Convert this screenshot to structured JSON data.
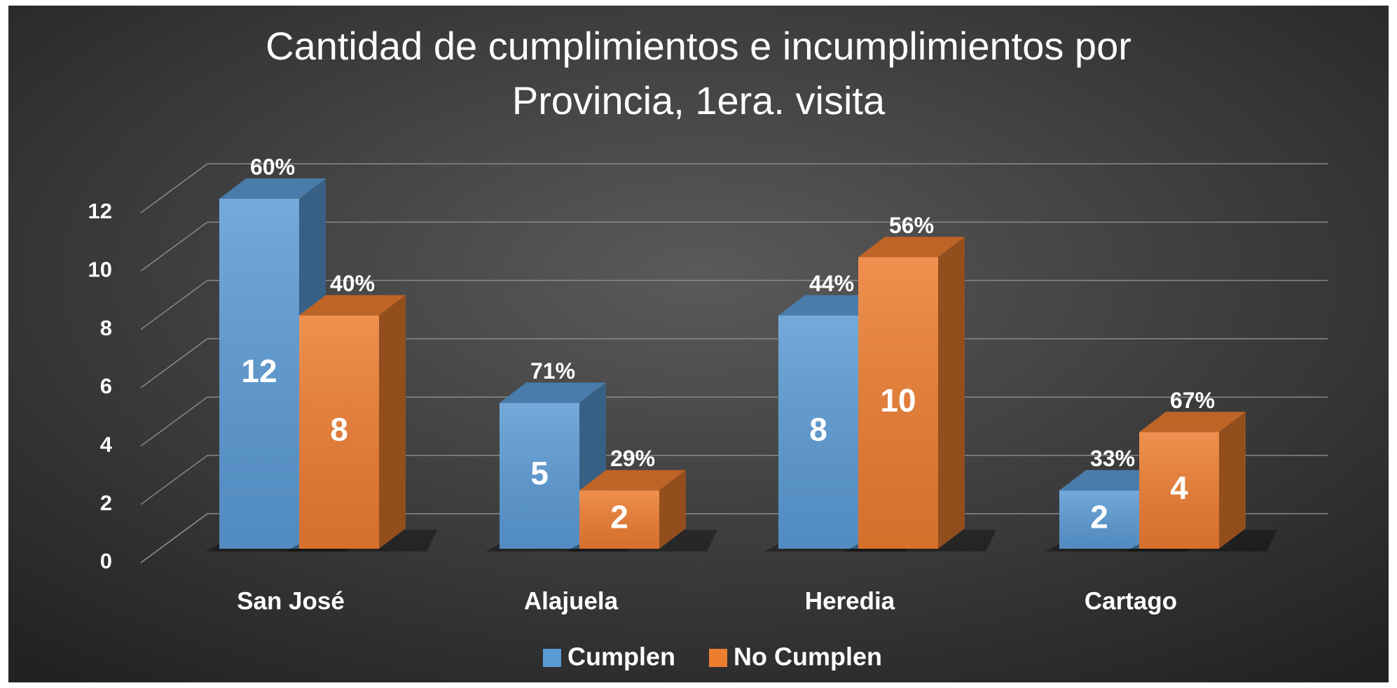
{
  "chart_data": {
    "type": "bar3d",
    "title": "Cantidad de cumplimientos e incumplimientos por",
    "subtitle": "Provincia, 1era. visita",
    "categories": [
      "San José",
      "Alajuela",
      "Heredia",
      "Cartago"
    ],
    "series": [
      {
        "name": "Cumplen",
        "color": "#5b9bd5",
        "values": [
          12,
          5,
          8,
          2
        ],
        "shares": [
          60,
          71,
          44,
          33
        ],
        "share_labels": [
          "60%",
          "71%",
          "44%",
          "33%"
        ]
      },
      {
        "name": "No Cumplen",
        "color": "#ed7d31",
        "values": [
          8,
          2,
          10,
          4
        ],
        "shares": [
          40,
          29,
          56,
          67
        ],
        "share_labels": [
          "40%",
          "29%",
          "56%",
          "67%"
        ]
      }
    ],
    "ylim": [
      0,
      12
    ],
    "yticks": [
      0,
      2,
      4,
      6,
      8,
      10,
      12
    ],
    "grid": true,
    "legend": "bottom"
  }
}
